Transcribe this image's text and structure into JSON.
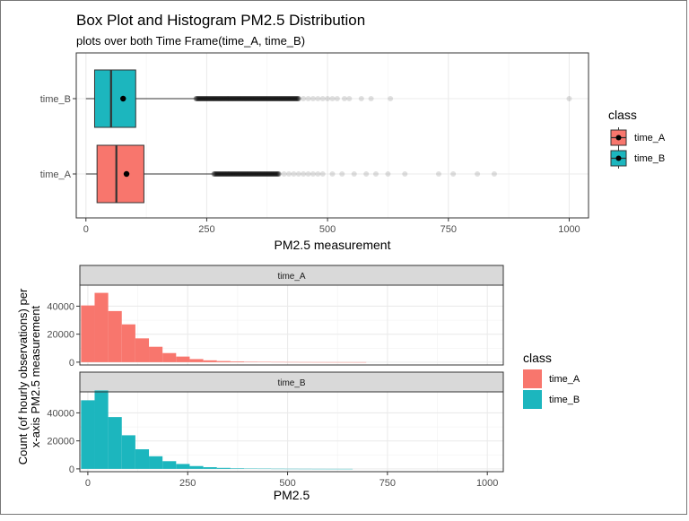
{
  "title": "Box Plot and Histogram PM2.5 Distribution",
  "subtitle": "plots over both Time Frame(time_A, time_B)",
  "colors": {
    "time_A": "#F8766D",
    "time_B": "#1CB6BE",
    "strip_bg": "#D9D9D9",
    "grid": "#EBEBEB"
  },
  "chart_data": [
    {
      "type": "box",
      "xlabel": "PM2.5 measurement",
      "ylabel": "",
      "xlim": [
        -20,
        1040
      ],
      "xticks": [
        0,
        250,
        500,
        750,
        1000
      ],
      "xtick_labels": [
        "0",
        "250",
        "500",
        "750",
        "1000"
      ],
      "categories": [
        "time_B",
        "time_A"
      ],
      "series": [
        {
          "name": "time_B",
          "q1": 18,
          "median": 52,
          "q3": 103,
          "mean": 77,
          "whisker_low": 0,
          "whisker_high": 228,
          "outlier_range": [
            228,
            440
          ],
          "sparse_outliers": [
            450,
            460,
            470,
            480,
            490,
            500,
            510,
            520,
            535,
            545,
            570,
            590,
            630,
            1000
          ]
        },
        {
          "name": "time_A",
          "q1": 23,
          "median": 63,
          "q3": 120,
          "mean": 84,
          "whisker_low": 0,
          "whisker_high": 265,
          "outlier_range": [
            265,
            400
          ],
          "sparse_outliers": [
            410,
            420,
            430,
            440,
            450,
            460,
            470,
            480,
            490,
            510,
            530,
            555,
            580,
            600,
            625,
            660,
            730,
            760,
            810,
            845
          ]
        }
      ],
      "legend": {
        "title": "class",
        "position": "right",
        "entries": [
          "time_A",
          "time_B"
        ]
      }
    },
    {
      "type": "histogram",
      "xlabel": "PM2.5",
      "ylabel": "Count (of hourly observations) per x-axis PM2.5 measurement",
      "xlim": [
        -20,
        1040
      ],
      "xticks": [
        0,
        250,
        500,
        750,
        1000
      ],
      "xtick_labels": [
        "0",
        "250",
        "500",
        "750",
        "1000"
      ],
      "ylim": [
        -2000,
        55000
      ],
      "yticks": [
        0,
        20000,
        40000
      ],
      "ytick_labels": [
        "0",
        "20000",
        "40000"
      ],
      "bin_width": 34,
      "bin_start": -17,
      "panels": [
        {
          "name": "time_A",
          "values": [
            40500,
            49500,
            36500,
            27000,
            17000,
            11000,
            6500,
            4000,
            2200,
            1300,
            800,
            500,
            300,
            200,
            120,
            80,
            50,
            30,
            20,
            10,
            6
          ]
        },
        {
          "name": "time_B",
          "values": [
            49000,
            56000,
            37000,
            24000,
            14000,
            9000,
            5500,
            3500,
            2000,
            1200,
            700,
            400,
            250,
            150,
            90,
            60,
            40,
            20,
            10,
            5
          ]
        }
      ],
      "legend": {
        "title": "class",
        "position": "right",
        "entries": [
          "time_A",
          "time_B"
        ]
      }
    }
  ]
}
